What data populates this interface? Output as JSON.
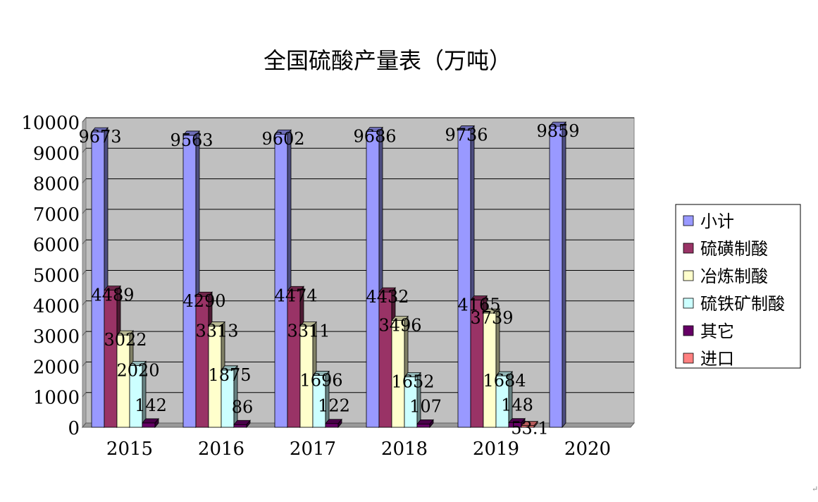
{
  "chart_data": {
    "type": "bar",
    "title": "全国硫酸产量表（万吨）",
    "categories": [
      "2015",
      "2016",
      "2017",
      "2018",
      "2019",
      "2020"
    ],
    "y_ticks": [
      "0",
      "1000",
      "2000",
      "3000",
      "4000",
      "5000",
      "6000",
      "7000",
      "8000",
      "9000",
      "10000"
    ],
    "ylim": [
      0,
      10000
    ],
    "grid": true,
    "legend_position": "right",
    "series": [
      {
        "name": "小计",
        "color": "#9999ff",
        "values": [
          9673,
          9563,
          9602,
          9686,
          9736,
          9859
        ],
        "labels": [
          "9673",
          "9563",
          "9602",
          "9686",
          "9736",
          "9859"
        ]
      },
      {
        "name": "硫磺制酸",
        "color": "#993366",
        "values": [
          4489,
          4290,
          4474,
          4432,
          4165,
          null
        ],
        "labels": [
          "4489",
          "4290",
          "4474",
          "4432",
          "4165",
          ""
        ]
      },
      {
        "name": "冶炼制酸",
        "color": "#ffffcc",
        "values": [
          3022,
          3313,
          3311,
          3496,
          3739,
          null
        ],
        "labels": [
          "3022",
          "3313",
          "3311",
          "3496",
          "3739",
          ""
        ]
      },
      {
        "name": "硫铁矿制酸",
        "color": "#ccffff",
        "values": [
          2020,
          1875,
          1696,
          1652,
          1684,
          null
        ],
        "labels": [
          "2020",
          "1875",
          "1696",
          "1652",
          "1684",
          ""
        ]
      },
      {
        "name": "其它",
        "color": "#660066",
        "values": [
          142,
          86,
          122,
          107,
          148,
          null
        ],
        "labels": [
          "142",
          "86",
          "122",
          "107",
          "148",
          ""
        ]
      },
      {
        "name": "进口",
        "color": "#ff8080",
        "values": [
          null,
          null,
          null,
          null,
          53.1,
          null
        ],
        "labels": [
          "",
          "",
          "",
          "",
          "53.1",
          ""
        ]
      }
    ]
  },
  "page_mark": "↵"
}
